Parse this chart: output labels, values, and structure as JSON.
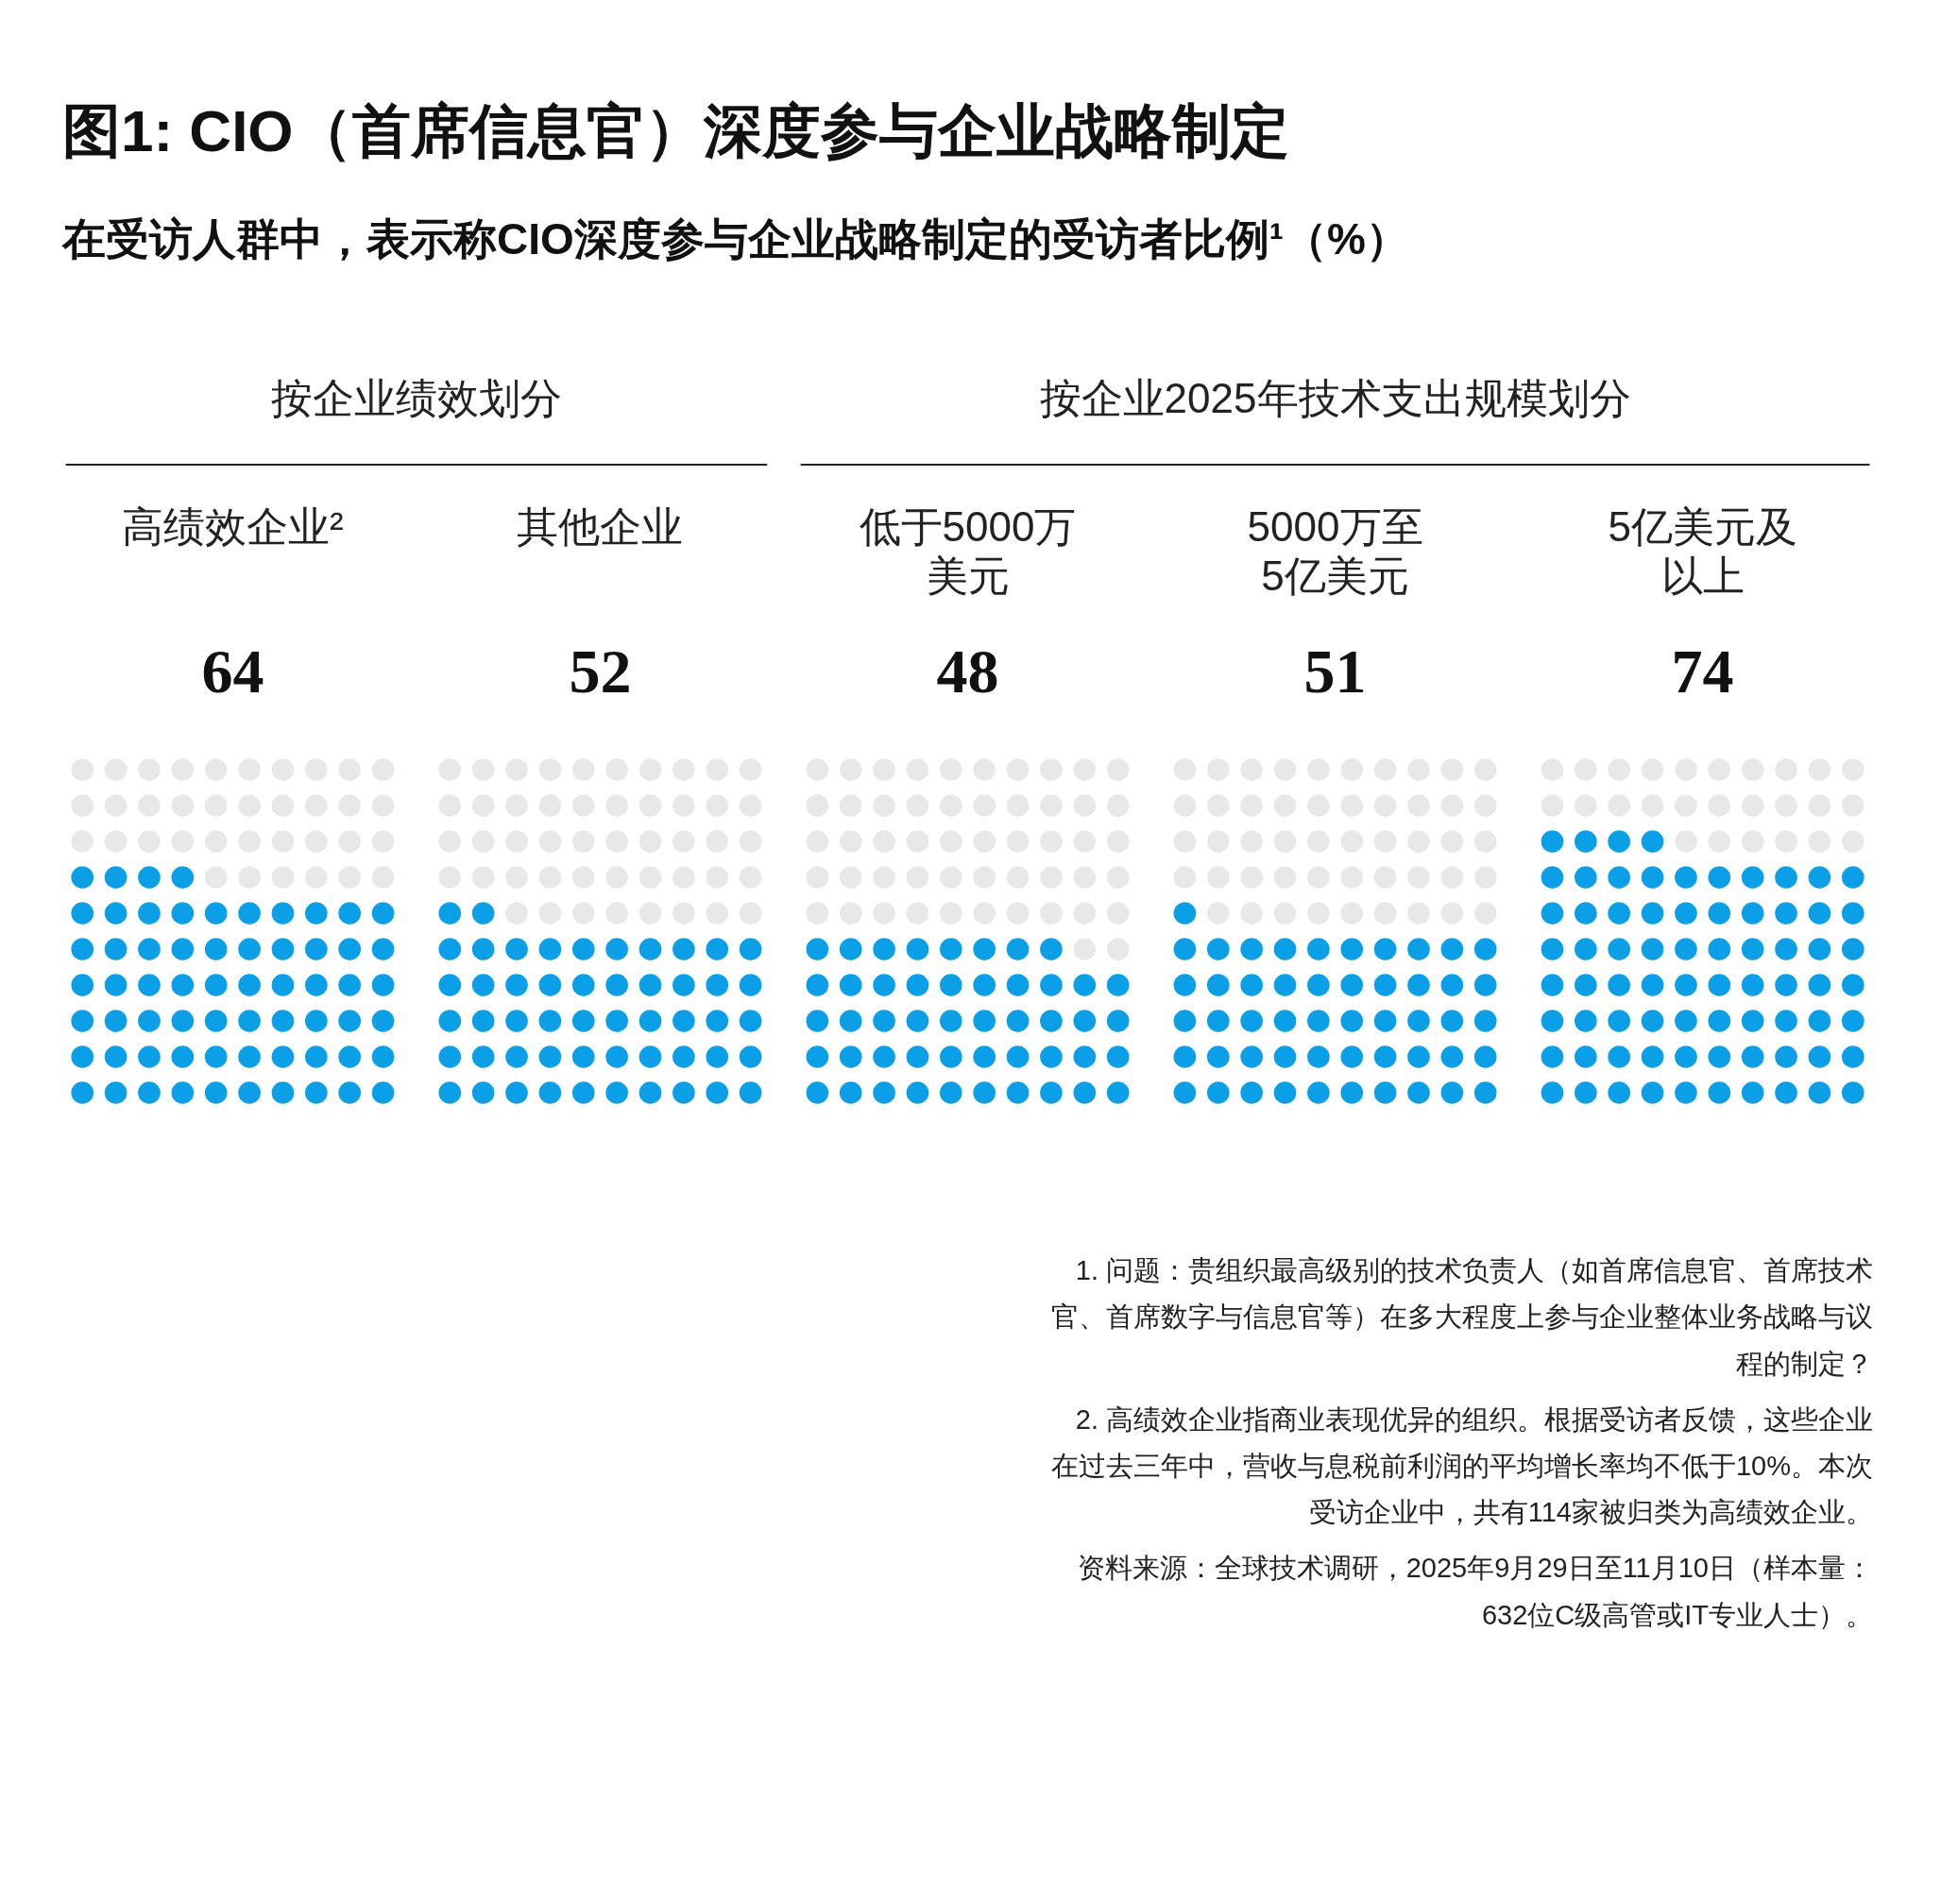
{
  "chart_data": {
    "type": "other",
    "title": "图1: CIO（首席信息官）深度参与企业战略制定",
    "subtitle": "在受访人群中，表示称CIO深度参与企业战略制定的受访者比例¹（%）",
    "categories": [
      "高绩效企业²",
      "其他企业",
      "低于5000万美元",
      "5000万至5亿美元",
      "5亿美元及以上"
    ],
    "values": [
      64,
      52,
      48,
      51,
      74
    ],
    "color": "#0a9fe6",
    "data_labels": true,
    "annotations": [
      "按企业绩效划分",
      "按企业2025年技术支出规模划分",
      "1. 问题：贵组织最高级别的技术负责人（如首席信息官、首席技术官、首席数字与信息官等）在多大程度上参与企业整体业务战略与议程的制定？",
      "2. 高绩效企业指商业表现优异的组织。根据受访者反馈，这些企业在过去三年中，营收与息税前利润的平均增长率均不低于10%。本次受访企业中，共有114家被归类为高绩效企业。",
      "资料来源：全球技术调研，2025年9月29日至11月10日（样本量：632位C级高管或IT专业人士）。"
    ]
  }
}
